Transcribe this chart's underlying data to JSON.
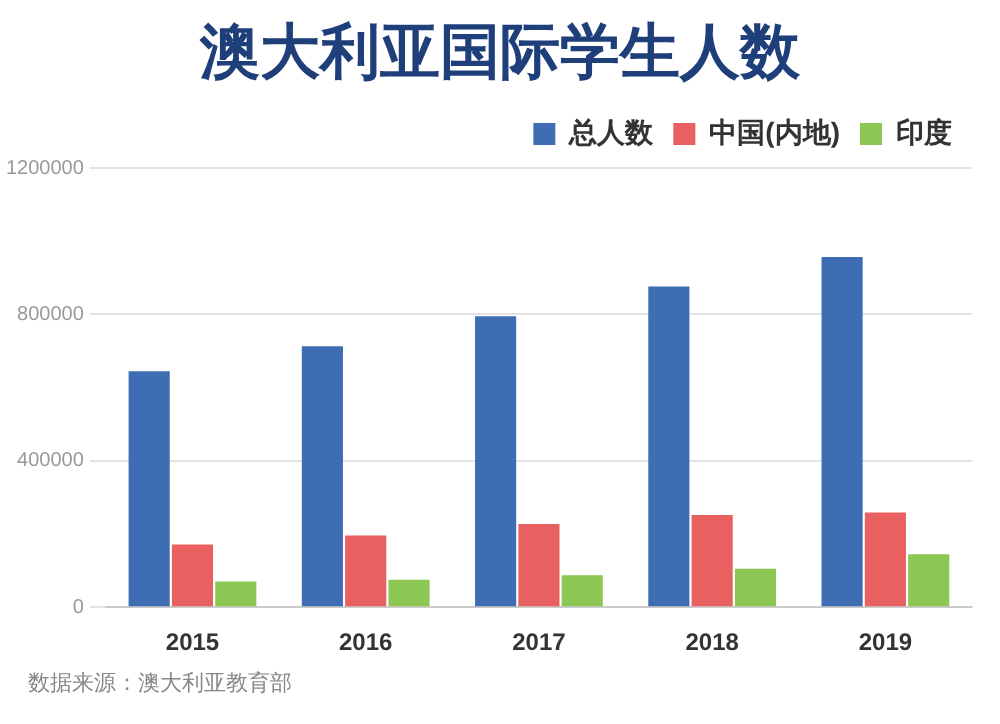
{
  "chart_data": {
    "type": "bar",
    "title": "澳大利亚国际学生人数",
    "categories": [
      "2015",
      "2016",
      "2017",
      "2018",
      "2019"
    ],
    "series": [
      {
        "name": "总人数",
        "color": "#3e6db4",
        "values": [
          645000,
          713000,
          795000,
          876000,
          957000
        ]
      },
      {
        "name": "中国(内地)",
        "color": "#e8605f",
        "values": [
          171000,
          196000,
          227000,
          252000,
          259000
        ]
      },
      {
        "name": "印度",
        "color": "#8cc653",
        "values": [
          70000,
          75000,
          87000,
          105000,
          145000
        ]
      }
    ],
    "ylim": [
      0,
      1200000
    ],
    "yticks": [
      0,
      400000,
      800000,
      1200000
    ],
    "grid": "y",
    "legend": "top right",
    "annotations": [
      "数据来源：澳大利亚教育部"
    ]
  }
}
